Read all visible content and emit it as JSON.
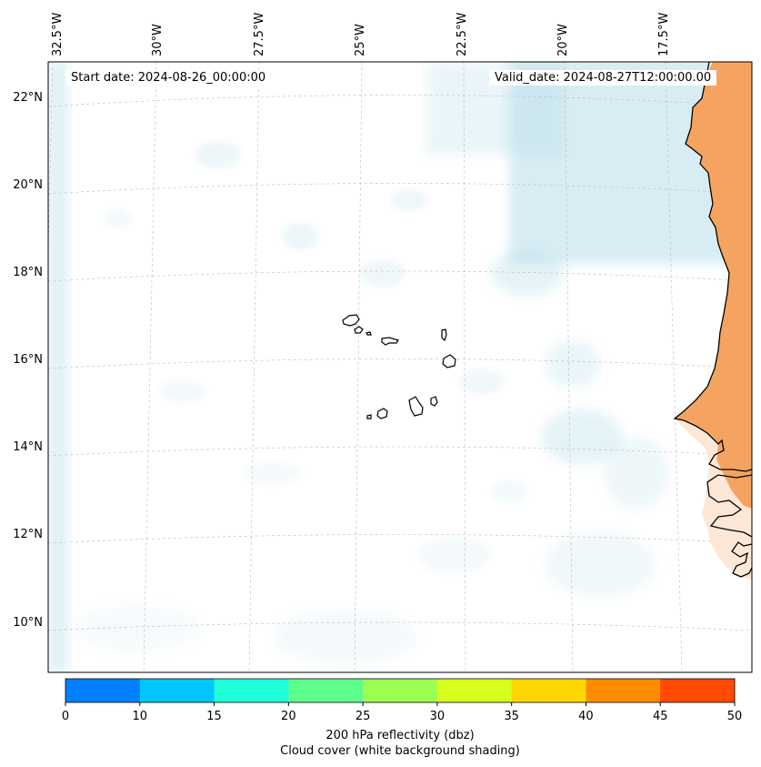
{
  "map": {
    "start_date": "Start date: 2024-08-26_00:00:00",
    "valid_date": "Valid_date: 2024-08-27T12:00:00.00",
    "lon_labels": [
      "32.5°W",
      "30°W",
      "27.5°W",
      "25°W",
      "22.5°W",
      "20°W",
      "17.5°W"
    ],
    "lat_labels": [
      "22°N",
      "20°N",
      "18°N",
      "16°N",
      "14°N",
      "12°N",
      "10°N"
    ],
    "land_color": "#f4a460",
    "cloud_color": "#a9d8e6"
  },
  "colorbar": {
    "ticks": [
      "0",
      "10",
      "15",
      "20",
      "25",
      "30",
      "35",
      "40",
      "45",
      "50"
    ],
    "colors": [
      "#007fff",
      "#00c5ff",
      "#20ffd8",
      "#5dff8c",
      "#9bff52",
      "#d6ff1e",
      "#ffd700",
      "#ff8c00",
      "#ff4a00"
    ],
    "label_line1": "200 hPa reflectivity (dbz)",
    "label_line2": "Cloud cover (white background shading)"
  }
}
